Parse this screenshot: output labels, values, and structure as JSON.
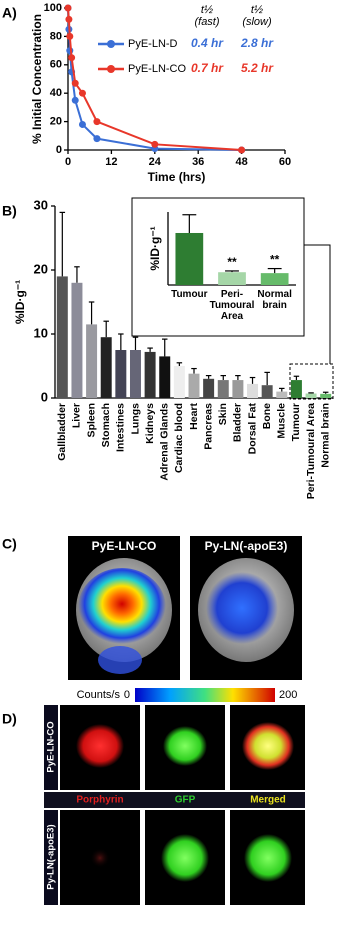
{
  "figure_labels": [
    "A)",
    "B)",
    "C)",
    "D)"
  ],
  "chart_data": [
    {
      "type": "line",
      "xlabel": "Time (hrs)",
      "ylabel": "% Initial Concentration",
      "x": [
        0,
        0.25,
        0.5,
        1,
        2,
        4,
        8,
        24,
        48
      ],
      "xlim": [
        0,
        60
      ],
      "xticks": [
        0,
        12,
        24,
        36,
        48,
        60
      ],
      "ylim": [
        0,
        100
      ],
      "yticks": [
        0,
        20,
        40,
        60,
        80,
        100
      ],
      "series": [
        {
          "name": "PyE-LN-D",
          "color": "#3b6fd6",
          "values": [
            100,
            85,
            70,
            55,
            35,
            18,
            8,
            1,
            0
          ]
        },
        {
          "name": "PyE-LN-CO",
          "color": "#e8372a",
          "values": [
            100,
            92,
            80,
            65,
            47,
            40,
            20,
            4,
            0
          ]
        }
      ],
      "half_life_table": {
        "headers": [
          [
            "t½",
            "(fast)"
          ],
          [
            "t½",
            "(slow)"
          ]
        ],
        "rows": [
          [
            "0.4 hr",
            "2.8 hr"
          ],
          [
            "0.7 hr",
            "5.2 hr"
          ]
        ]
      }
    },
    {
      "type": "bar",
      "ylabel": "%ID·g⁻¹",
      "categories": [
        "Gallbladder",
        "Liver",
        "Spleen",
        "Stomach",
        "Intestines",
        "Lungs",
        "Kidneys",
        "Adrenal Glands",
        "Cardiac blood",
        "Heart",
        "Pancreas",
        "Skin",
        "Bladder",
        "Dorsal Fat",
        "Bone",
        "Muscle",
        "Tumour",
        "Peri-Tumoural Area",
        "Normal brain"
      ],
      "values": [
        19,
        18,
        11.5,
        9.5,
        7.5,
        7.5,
        7.2,
        6.5,
        5,
        3.8,
        3,
        2.8,
        2.8,
        2.2,
        2,
        1,
        2.8,
        0.7,
        0.65
      ],
      "errors": [
        10,
        2.5,
        3.5,
        2.5,
        2.5,
        2,
        0.6,
        2.7,
        0.5,
        0.8,
        0.5,
        0.7,
        0.7,
        1,
        2,
        0.5,
        0.6,
        0.1,
        0.25
      ],
      "colors": [
        "#555555",
        "#8c8c99",
        "#9a9aa0",
        "#222222",
        "#444455",
        "#666677",
        "#333333",
        "#111111",
        "#eeeeee",
        "#aaaaaa",
        "#444444",
        "#777777",
        "#999999",
        "#dddddd",
        "#555555",
        "#bbbbbb",
        "#2e7d32",
        "#a5d6a7",
        "#66bb6a"
      ],
      "ylim": [
        0,
        30
      ],
      "yticks": [
        0,
        10,
        20,
        30
      ]
    },
    {
      "type": "bar",
      "inset": true,
      "ylabel": "%ID·g⁻¹",
      "categories": [
        "Tumour",
        "Peri-Tumoural Area",
        "Normal brain"
      ],
      "values": [
        2.85,
        0.7,
        0.65
      ],
      "errors": [
        1.0,
        0.07,
        0.25
      ],
      "colors": [
        "#2e7d32",
        "#a5d6a7",
        "#66bb6a"
      ],
      "sig_labels": [
        null,
        "**",
        "**"
      ],
      "ylim": [
        0,
        4
      ]
    }
  ],
  "panel_c": {
    "titles": [
      "PyE-LN-CO",
      "Py-LN(-apoE3)"
    ],
    "colorbar": {
      "label": "Counts/s",
      "range": [
        0,
        200
      ]
    }
  },
  "panel_d": {
    "rows": [
      "PyE-LN-CO",
      "Py-LN(-apoE3)"
    ],
    "columns": [
      {
        "label": "Porphyrin",
        "color": "#e02020"
      },
      {
        "label": "GFP",
        "color": "#2ecc2e"
      },
      {
        "label": "Merged",
        "color": "#e8e020"
      }
    ]
  }
}
